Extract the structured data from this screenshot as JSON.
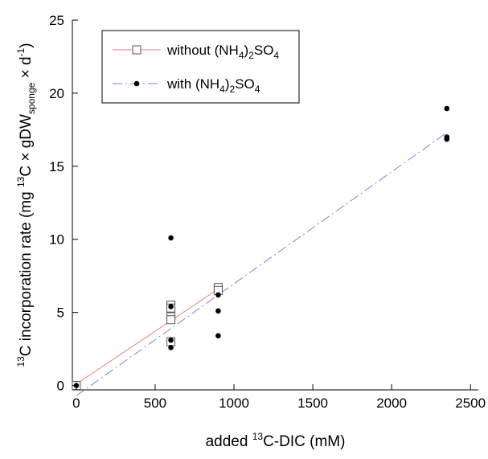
{
  "chart_data": {
    "type": "scatter",
    "xlim": [
      -25,
      2550
    ],
    "ylim": [
      -0.3,
      25
    ],
    "x_ticks": [
      0,
      500,
      1000,
      1500,
      2000,
      2500
    ],
    "y_ticks": [
      0,
      5,
      10,
      15,
      20,
      25
    ],
    "x_tick_labels": [
      "0",
      "500",
      "1000",
      "1500",
      "2000",
      "2500"
    ],
    "y_tick_labels": [
      "0",
      "5",
      "10",
      "15",
      "20",
      "25"
    ],
    "xlabel": {
      "prefix": "added ",
      "sup": "13",
      "suffix": "C-DIC (mM)"
    },
    "ylabel": {
      "sup1": "13",
      "part1": "C incorporation rate (mg ",
      "sup2": "13",
      "part2": "C × gDW",
      "sub": "sponge",
      "part3": " × d",
      "sup3": "-1",
      "part4": ")"
    },
    "legend_position": "top-left",
    "grid": false,
    "series": [
      {
        "name": "without (NH4)2SO4",
        "legend": {
          "pre": "without (NH",
          "sub1": "4",
          "mid": ")",
          "sub2": "2",
          "post": "SO",
          "sub3": "4"
        },
        "marker": "open-square",
        "color": "#f08080",
        "line_style": "solid",
        "points": [
          {
            "x": 0,
            "y": 0
          },
          {
            "x": 600,
            "y": 5.5
          },
          {
            "x": 600,
            "y": 5.3
          },
          {
            "x": 600,
            "y": 4.7
          },
          {
            "x": 600,
            "y": 4.5
          },
          {
            "x": 600,
            "y": 3.0
          },
          {
            "x": 900,
            "y": 6.7
          },
          {
            "x": 900,
            "y": 6.5
          }
        ],
        "fit_line": {
          "x": [
            0,
            900
          ],
          "y": [
            0.1,
            6.6
          ]
        }
      },
      {
        "name": "with (NH4)2SO4",
        "legend": {
          "pre": "with (NH",
          "sub1": "4",
          "mid": ")",
          "sub2": "2",
          "post": "SO",
          "sub3": "4"
        },
        "marker": "filled-circle",
        "color": "#8080e0",
        "line_style": "dash-dot",
        "points": [
          {
            "x": 0,
            "y": 0
          },
          {
            "x": 600,
            "y": 10.1
          },
          {
            "x": 600,
            "y": 5.4
          },
          {
            "x": 600,
            "y": 3.1
          },
          {
            "x": 600,
            "y": 2.6
          },
          {
            "x": 900,
            "y": 6.2
          },
          {
            "x": 900,
            "y": 5.1
          },
          {
            "x": 900,
            "y": 3.4
          },
          {
            "x": 2350,
            "y": 18.95
          },
          {
            "x": 2350,
            "y": 17.0
          },
          {
            "x": 2350,
            "y": 16.85
          }
        ],
        "fit_line": {
          "x": [
            0,
            2350
          ],
          "y": [
            -0.7,
            17.3
          ]
        }
      }
    ]
  }
}
